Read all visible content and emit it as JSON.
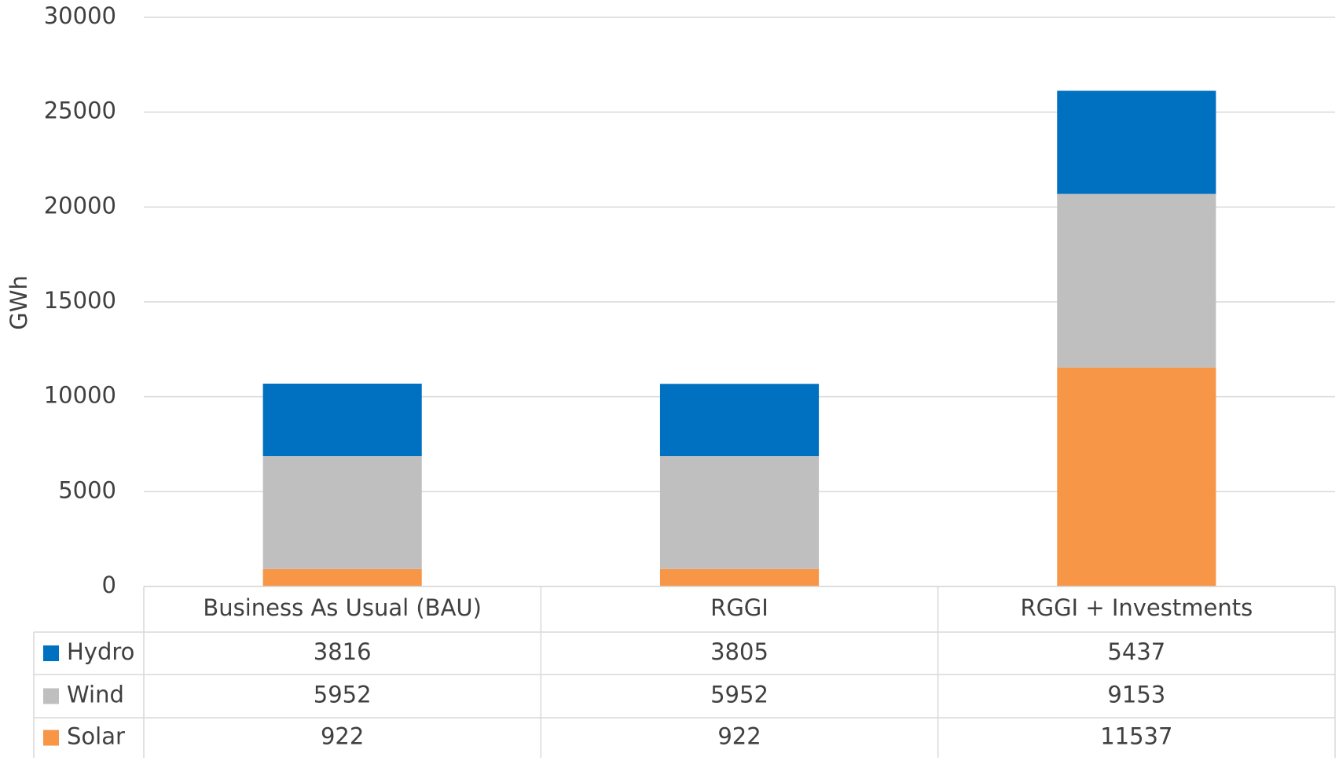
{
  "chart_data": {
    "type": "stacked_bar",
    "y_label": "GWh",
    "categories": [
      "Business As Usual (BAU)",
      "RGGI",
      "RGGI + Investments"
    ],
    "series": [
      {
        "name": "Hydro",
        "color": "#0070c0",
        "values": [
          3816,
          3805,
          5437
        ]
      },
      {
        "name": "Wind",
        "color": "#bfbfbf",
        "values": [
          5952,
          5952,
          9153
        ]
      },
      {
        "name": "Solar",
        "color": "#f79646",
        "values": [
          922,
          922,
          11537
        ]
      }
    ],
    "ylim": [
      0,
      30000
    ],
    "yticks": [
      0,
      5000,
      10000,
      15000,
      20000,
      25000,
      30000
    ],
    "grid": true
  }
}
